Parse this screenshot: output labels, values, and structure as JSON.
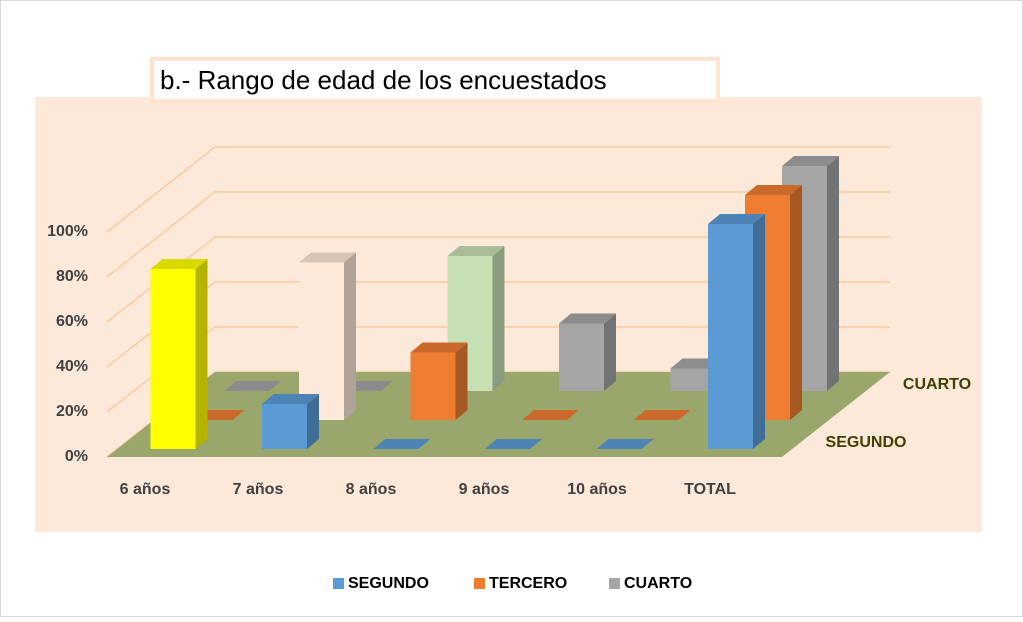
{
  "chart_data": {
    "type": "bar3d",
    "title": "b.- Rango de edad de los encuestados",
    "categories": [
      "6 años",
      "7 años",
      "8 años",
      "9 años",
      "10 años",
      "TOTAL"
    ],
    "series": [
      {
        "name": "SEGUNDO",
        "color": "#5b9bd5",
        "values": [
          80,
          20,
          0,
          0,
          0,
          100
        ],
        "colors": [
          "#ffff00",
          "#5b9bd5",
          "#5b9bd5",
          "#5b9bd5",
          "#5b9bd5",
          "#5b9bd5"
        ]
      },
      {
        "name": "TERCERO",
        "color": "#ed7d31",
        "values": [
          0,
          70,
          30,
          0,
          0,
          100
        ],
        "colors": [
          "#ed7d31",
          "#fde9d9",
          "#ed7d31",
          "#ed7d31",
          "#ed7d31",
          "#ed7d31"
        ]
      },
      {
        "name": "CUARTO",
        "color": "#a5a5a5",
        "values": [
          0,
          0,
          60,
          30,
          10,
          100
        ],
        "colors": [
          "#a5a5a5",
          "#a5a5a5",
          "#c6e0b4",
          "#a5a5a5",
          "#a5a5a5",
          "#a5a5a5"
        ]
      }
    ],
    "ylim": [
      0,
      100
    ],
    "yticks": [
      {
        "value": 0,
        "label": "0%"
      },
      {
        "value": 20,
        "label": "20%"
      },
      {
        "value": 40,
        "label": "40%"
      },
      {
        "value": 60,
        "label": "60%"
      },
      {
        "value": 80,
        "label": "80%"
      },
      {
        "value": 100,
        "label": "100%"
      }
    ],
    "grid": true,
    "legend": "bottom"
  }
}
